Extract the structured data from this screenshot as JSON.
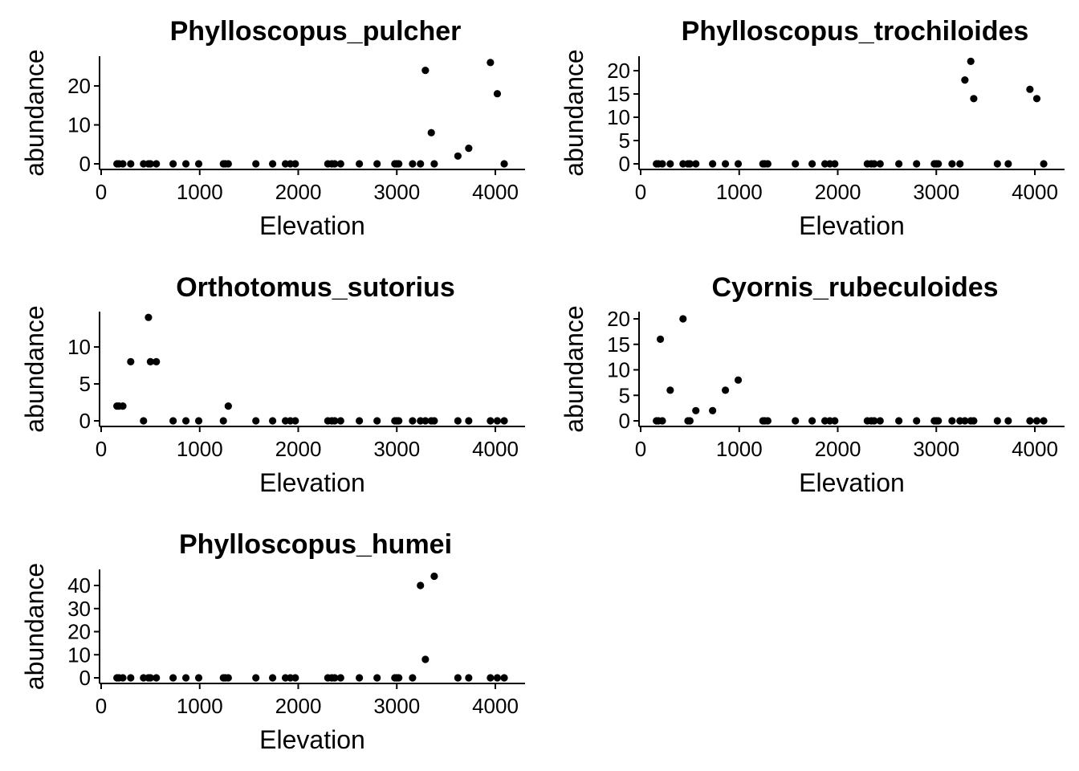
{
  "chart_data": [
    {
      "type": "scatter",
      "title": "Phylloscopus_pulcher",
      "xlabel": "Elevation",
      "ylabel": "abundance",
      "xlim": [
        0,
        4200
      ],
      "ylim": [
        0,
        27
      ],
      "xticks": [
        0,
        1000,
        2000,
        3000,
        4000
      ],
      "yticks": [
        0,
        10,
        20
      ],
      "x": [
        160,
        180,
        220,
        300,
        430,
        480,
        500,
        560,
        730,
        860,
        990,
        1240,
        1260,
        1290,
        1570,
        1740,
        1870,
        1920,
        1970,
        2300,
        2340,
        2370,
        2430,
        2620,
        2800,
        2980,
        3000,
        3020,
        3160,
        3240,
        3290,
        3350,
        3380,
        3620,
        3730,
        3950,
        4020,
        4090
      ],
      "y": [
        0,
        0,
        0,
        0,
        0,
        0,
        0,
        0,
        0,
        0,
        0,
        0,
        0,
        0,
        0,
        0,
        0,
        0,
        0,
        0,
        0,
        0,
        0,
        0,
        0,
        0,
        0,
        0,
        0,
        0,
        24,
        8,
        0,
        2,
        4,
        26,
        18,
        0
      ]
    },
    {
      "type": "scatter",
      "title": "Phylloscopus_trochiloides",
      "xlabel": "Elevation",
      "ylabel": "abundance",
      "xlim": [
        0,
        4200
      ],
      "ylim": [
        0,
        23
      ],
      "xticks": [
        0,
        1000,
        2000,
        3000,
        4000
      ],
      "yticks": [
        0,
        5,
        10,
        15,
        20
      ],
      "x": [
        160,
        180,
        220,
        300,
        430,
        480,
        500,
        560,
        730,
        860,
        990,
        1240,
        1260,
        1290,
        1570,
        1740,
        1870,
        1920,
        1970,
        2300,
        2340,
        2370,
        2430,
        2620,
        2800,
        2980,
        3000,
        3020,
        3160,
        3240,
        3290,
        3350,
        3380,
        3620,
        3730,
        3950,
        4020,
        4090
      ],
      "y": [
        0,
        0,
        0,
        0,
        0,
        0,
        0,
        0,
        0,
        0,
        0,
        0,
        0,
        0,
        0,
        0,
        0,
        0,
        0,
        0,
        0,
        0,
        0,
        0,
        0,
        0,
        0,
        0,
        0,
        0,
        18,
        22,
        14,
        0,
        0,
        16,
        14,
        0
      ]
    },
    {
      "type": "scatter",
      "title": "Orthotomus_sutorius",
      "xlabel": "Elevation",
      "ylabel": "abundance",
      "xlim": [
        0,
        4200
      ],
      "ylim": [
        0,
        15
      ],
      "xticks": [
        0,
        1000,
        2000,
        3000,
        4000
      ],
      "yticks": [
        0,
        5,
        10
      ],
      "x": [
        160,
        180,
        220,
        300,
        430,
        480,
        500,
        560,
        730,
        860,
        990,
        1240,
        1290,
        1570,
        1740,
        1870,
        1920,
        1970,
        2300,
        2340,
        2370,
        2430,
        2620,
        2800,
        2980,
        3000,
        3020,
        3160,
        3240,
        3290,
        3350,
        3380,
        3620,
        3730,
        3950,
        4020,
        4090
      ],
      "y": [
        2,
        2,
        2,
        8,
        0,
        14,
        8,
        8,
        0,
        0,
        0,
        0,
        2,
        0,
        0,
        0,
        0,
        0,
        0,
        0,
        0,
        0,
        0,
        0,
        0,
        0,
        0,
        0,
        0,
        0,
        0,
        0,
        0,
        0,
        0,
        0,
        0
      ]
    },
    {
      "type": "scatter",
      "title": "Cyornis_rubeculoides",
      "xlabel": "Elevation",
      "ylabel": "abundance",
      "xlim": [
        0,
        4200
      ],
      "ylim": [
        0,
        21
      ],
      "xticks": [
        0,
        1000,
        2000,
        3000,
        4000
      ],
      "yticks": [
        0,
        5,
        10,
        15,
        20
      ],
      "x": [
        160,
        180,
        200,
        220,
        300,
        430,
        480,
        500,
        560,
        730,
        860,
        990,
        1240,
        1260,
        1290,
        1570,
        1740,
        1870,
        1920,
        1970,
        2300,
        2340,
        2370,
        2430,
        2620,
        2800,
        2980,
        3000,
        3020,
        3160,
        3240,
        3290,
        3350,
        3380,
        3620,
        3730,
        3950,
        4020,
        4090
      ],
      "y": [
        0,
        0,
        16,
        0,
        6,
        20,
        0,
        0,
        2,
        2,
        6,
        8,
        0,
        0,
        0,
        0,
        0,
        0,
        0,
        0,
        0,
        0,
        0,
        0,
        0,
        0,
        0,
        0,
        0,
        0,
        0,
        0,
        0,
        0,
        0,
        0,
        0,
        0,
        0
      ]
    },
    {
      "type": "scatter",
      "title": "Phylloscopus_humei",
      "xlabel": "Elevation",
      "ylabel": "abundance",
      "xlim": [
        0,
        4200
      ],
      "ylim": [
        0,
        46
      ],
      "xticks": [
        0,
        1000,
        2000,
        3000,
        4000
      ],
      "yticks": [
        0,
        10,
        20,
        30,
        40
      ],
      "x": [
        160,
        180,
        220,
        300,
        430,
        480,
        500,
        560,
        730,
        860,
        990,
        1240,
        1260,
        1290,
        1570,
        1740,
        1870,
        1920,
        1970,
        2300,
        2340,
        2370,
        2430,
        2620,
        2800,
        2980,
        3000,
        3020,
        3160,
        3240,
        3290,
        3380,
        3620,
        3730,
        3950,
        4020,
        4090
      ],
      "y": [
        0,
        0,
        0,
        0,
        0,
        0,
        0,
        0,
        0,
        0,
        0,
        0,
        0,
        0,
        0,
        0,
        0,
        0,
        0,
        0,
        0,
        0,
        0,
        0,
        0,
        0,
        0,
        0,
        0,
        40,
        8,
        44,
        0,
        0,
        0,
        0,
        0
      ]
    }
  ]
}
